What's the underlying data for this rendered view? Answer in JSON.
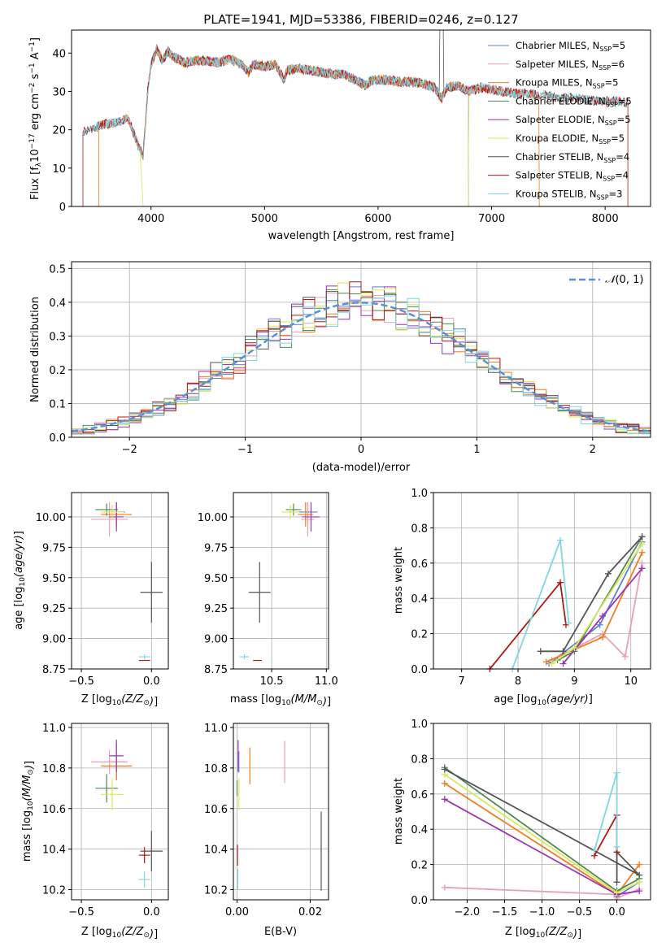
{
  "chart_data": [
    {
      "type": "line",
      "title": "PLATE=1941, MJD=53386, FIBERID=0246, z=0.127",
      "xlabel": "wavelength [Angstrom, rest frame]",
      "ylabel": "Flux [f_λ 10^-17 erg cm^-2 s^-1 A^-1]",
      "xlim": [
        3300,
        8400
      ],
      "ylim": [
        0,
        46
      ],
      "xticks": [
        4000,
        5000,
        6000,
        7000,
        8000
      ],
      "yticks": [
        0,
        10,
        20,
        30,
        40
      ],
      "legend_position": "upper-right",
      "shape_points": [
        [
          3400,
          19.5
        ],
        [
          3500,
          20.5
        ],
        [
          3600,
          21.5
        ],
        [
          3700,
          22
        ],
        [
          3800,
          23
        ],
        [
          3860,
          18
        ],
        [
          3930,
          13
        ],
        [
          3970,
          30
        ],
        [
          4000,
          37
        ],
        [
          4050,
          41
        ],
        [
          4100,
          38
        ],
        [
          4150,
          40.5
        ],
        [
          4200,
          39
        ],
        [
          4300,
          37.5
        ],
        [
          4400,
          38
        ],
        [
          4500,
          38
        ],
        [
          4600,
          37.5
        ],
        [
          4700,
          38.5
        ],
        [
          4800,
          37
        ],
        [
          4860,
          35
        ],
        [
          4900,
          37
        ],
        [
          5000,
          36.5
        ],
        [
          5100,
          37
        ],
        [
          5170,
          33
        ],
        [
          5200,
          35.5
        ],
        [
          5300,
          36
        ],
        [
          5400,
          35.5
        ],
        [
          5500,
          35
        ],
        [
          5600,
          34.5
        ],
        [
          5700,
          34.5
        ],
        [
          5800,
          33
        ],
        [
          5890,
          31.5
        ],
        [
          5950,
          33
        ],
        [
          6000,
          33
        ],
        [
          6100,
          33
        ],
        [
          6200,
          32.5
        ],
        [
          6300,
          32.5
        ],
        [
          6400,
          32
        ],
        [
          6500,
          31
        ],
        [
          6560,
          28
        ],
        [
          6600,
          31
        ],
        [
          6700,
          31.5
        ],
        [
          6800,
          30
        ],
        [
          6900,
          31
        ],
        [
          7000,
          30.5
        ],
        [
          7100,
          30
        ],
        [
          7200,
          29.5
        ],
        [
          7300,
          29.5
        ],
        [
          7400,
          29
        ],
        [
          7500,
          29
        ],
        [
          7600,
          28
        ],
        [
          7700,
          28.5
        ],
        [
          7800,
          28
        ],
        [
          7900,
          27.5
        ],
        [
          8000,
          27.5
        ],
        [
          8100,
          27.5
        ],
        [
          8200,
          27
        ]
      ],
      "series": [
        {
          "name": "Chabrier MILES, N_SSP=5",
          "color": "#5d7fd6",
          "coverage": [
            3540,
            7420
          ]
        },
        {
          "name": "Salpeter MILES, N_SSP=6",
          "color": "#e8a0b8",
          "coverage": [
            3540,
            7420
          ]
        },
        {
          "name": "Kroupa MILES, N_SSP=5",
          "color": "#f07d1e",
          "coverage": [
            3540,
            7420
          ]
        },
        {
          "name": "Chabrier ELODIE, N_SSP=5",
          "color": "#4f8a50",
          "coverage": [
            3900,
            6800
          ]
        },
        {
          "name": "Salpeter ELODIE, N_SSP=5",
          "color": "#9b34b5",
          "coverage": [
            3900,
            6800
          ]
        },
        {
          "name": "Kroupa ELODIE, N_SSP=5",
          "color": "#d8e85a",
          "coverage": [
            3900,
            6800
          ]
        },
        {
          "name": "Chabrier STELIB, N_SSP=4",
          "color": "#555555",
          "coverage": [
            3400,
            8200
          ]
        },
        {
          "name": "Salpeter STELIB, N_SSP=4",
          "color": "#b01818",
          "coverage": [
            3400,
            8200
          ]
        },
        {
          "name": "Kroupa STELIB, N_SSP=3",
          "color": "#7fd7e0",
          "coverage": [
            3400,
            8200
          ]
        }
      ],
      "legend_labels": [
        {
          "base": "Chabrier MILES, N",
          "sub": "SSP",
          "tail": "=5"
        },
        {
          "base": "Salpeter MILES, N",
          "sub": "SSP",
          "tail": "=6"
        },
        {
          "base": "Kroupa MILES, N",
          "sub": "SSP",
          "tail": "=5"
        },
        {
          "base": "Chabrier ELODIE, N",
          "sub": "SSP",
          "tail": "=5"
        },
        {
          "base": "Salpeter ELODIE, N",
          "sub": "SSP",
          "tail": "=5"
        },
        {
          "base": "Kroupa ELODIE, N",
          "sub": "SSP",
          "tail": "=5"
        },
        {
          "base": "Chabrier STELIB, N",
          "sub": "SSP",
          "tail": "=4"
        },
        {
          "base": "Salpeter STELIB, N",
          "sub": "SSP",
          "tail": "=4"
        },
        {
          "base": "Kroupa STELIB, N",
          "sub": "SSP",
          "tail": "=3"
        }
      ]
    },
    {
      "type": "line",
      "xlabel": "(data-model)/error",
      "ylabel": "Normed distribution",
      "xlim": [
        -2.5,
        2.5
      ],
      "ylim": [
        0,
        0.52
      ],
      "xticks": [
        -2,
        -1,
        0,
        1,
        2
      ],
      "yticks": [
        0.0,
        0.1,
        0.2,
        0.3,
        0.4,
        0.5
      ],
      "grid": true,
      "legend_position": "upper-right",
      "reference_curve": {
        "name": "N(0,1)",
        "color": "#5b8fd6",
        "style": "dashed"
      },
      "bins": [
        -2.5,
        2.5,
        50
      ]
    },
    {
      "type": "scatter",
      "xlabel": "Z [log10(Z/Z⊙)]",
      "ylabel": "age [log10(age/yr)]",
      "xlim": [
        -0.57,
        0.12
      ],
      "ylim": [
        8.75,
        10.2
      ],
      "xticks": [
        -0.5,
        0.0
      ],
      "yticks": [
        8.75,
        9.0,
        9.25,
        9.5,
        9.75,
        10.0
      ],
      "grid": true
    },
    {
      "type": "scatter",
      "xlabel": "mass [log10(M/M⊙)]",
      "ylabel": "",
      "xlim": [
        10.15,
        11.02
      ],
      "ylim": [
        8.75,
        10.2
      ],
      "xticks": [
        10.5,
        11.0
      ],
      "yticks": [
        8.75,
        9.0,
        9.25,
        9.5,
        9.75,
        10.0
      ],
      "grid": true
    },
    {
      "type": "line",
      "xlabel": "age [log10(age/yr)]",
      "ylabel": "mass weight",
      "xlim": [
        6.5,
        10.35
      ],
      "ylim": [
        0,
        1
      ],
      "xticks": [
        7,
        8,
        9,
        10
      ],
      "yticks": [
        0.0,
        0.2,
        0.4,
        0.6,
        0.8,
        1.0
      ],
      "grid": true
    },
    {
      "type": "scatter",
      "xlabel": "Z [log10(Z/Z⊙)]",
      "ylabel": "mass [log10(M/M⊙)]",
      "xlim": [
        -0.57,
        0.12
      ],
      "ylim": [
        10.15,
        11.02
      ],
      "xticks": [
        -0.5,
        0.0
      ],
      "yticks": [
        10.2,
        10.4,
        10.6,
        10.8,
        11.0
      ],
      "grid": true
    },
    {
      "type": "scatter",
      "xlabel": "E(B-V)",
      "ylabel": "",
      "xlim": [
        -0.001,
        0.025
      ],
      "ylim": [
        10.15,
        11.02
      ],
      "xticks": [
        0.0,
        0.02
      ],
      "yticks": [
        10.2,
        10.4,
        10.6,
        10.8,
        11.0
      ],
      "grid": true
    },
    {
      "type": "line",
      "xlabel": "Z [log10(Z/Z⊙)]",
      "ylabel": "mass weight",
      "xlim": [
        -2.45,
        0.45
      ],
      "ylim": [
        0,
        1
      ],
      "xticks": [
        -2.0,
        -1.5,
        -1.0,
        -0.5,
        0.0
      ],
      "yticks": [
        0.0,
        0.2,
        0.4,
        0.6,
        0.8,
        1.0
      ],
      "grid": true
    }
  ],
  "ssp_fits": [
    {
      "color": "#5d7fd6",
      "Z": [
        -0.25,
        0.06
      ],
      "age": [
        10.04,
        0.08
      ],
      "mass": [
        10.83,
        0.09
      ],
      "ebv": [
        0.0005,
        0.04
      ],
      "ages": [
        8.55,
        9.45,
        10.2
      ],
      "Zs": [
        0.0,
        0.0,
        0.3
      ],
      "weights": [
        0.03,
        0.25,
        0.72
      ],
      "Zw": [
        [
          0,
          0.05
        ],
        [
          0,
          0.02
        ],
        [
          0.3,
          0.1
        ]
      ]
    },
    {
      "color": "#e8a0b8",
      "Z": [
        -0.3,
        0.13
      ],
      "age": [
        9.98,
        0.14
      ],
      "mass": [
        10.83,
        0.06
      ],
      "ebv": [
        0.013,
        0.08
      ],
      "ages": [
        8.6,
        9.5,
        9.9,
        10.2
      ],
      "Zs": [
        -2.3,
        0.0,
        0.0,
        0.3
      ],
      "weights": [
        0.05,
        0.2,
        0.07,
        0.6
      ],
      "Zw": [
        [
          -2.3,
          0.07
        ],
        [
          0,
          0.03
        ],
        [
          0,
          0.01
        ],
        [
          0.3,
          0.06
        ]
      ]
    },
    {
      "color": "#f07d1e",
      "Z": [
        -0.25,
        0.11
      ],
      "age": [
        10.02,
        0.1
      ],
      "mass": [
        10.81,
        0.07
      ],
      "ebv": [
        0.0035,
        0.07
      ],
      "ages": [
        8.5,
        9.5,
        10.2
      ],
      "Zs": [
        -2.3,
        0.0,
        0.3
      ],
      "weights": [
        0.04,
        0.18,
        0.66
      ],
      "Zw": [
        [
          -2.3,
          0.66
        ],
        [
          0,
          0.03
        ],
        [
          0.3,
          0.2
        ]
      ]
    },
    {
      "color": "#4f8a50",
      "Z": [
        -0.32,
        0.08
      ],
      "age": [
        10.06,
        0.05
      ],
      "mass": [
        10.7,
        0.07
      ],
      "ebv": [
        0.0,
        0.03
      ],
      "ages": [
        8.7,
        9.0,
        10.2
      ],
      "Zs": [
        -2.3,
        0.0,
        0.3
      ],
      "weights": [
        0.05,
        0.1,
        0.75
      ],
      "Zw": [
        [
          -2.3,
          0.75
        ],
        [
          0,
          0.05
        ],
        [
          0.3,
          0.12
        ]
      ]
    },
    {
      "color": "#9b34b5",
      "Z": [
        -0.25,
        0.05
      ],
      "age": [
        10.0,
        0.12
      ],
      "mass": [
        10.86,
        0.08
      ],
      "ebv": [
        0.0003,
        0.06
      ],
      "ages": [
        8.8,
        9.5,
        10.2
      ],
      "Zs": [
        -2.3,
        0.0,
        0.3
      ],
      "weights": [
        0.03,
        0.3,
        0.57
      ],
      "Zw": [
        [
          -2.3,
          0.57
        ],
        [
          0,
          0.03
        ],
        [
          0.3,
          0.05
        ]
      ]
    },
    {
      "color": "#d8e85a",
      "Z": [
        -0.28,
        0.08
      ],
      "age": [
        10.04,
        0.06
      ],
      "mass": [
        10.67,
        0.08
      ],
      "ebv": [
        0.0005,
        0.06
      ],
      "ages": [
        8.6,
        9.0,
        10.2
      ],
      "Zs": [
        -2.3,
        0.0,
        0.3
      ],
      "weights": [
        0.03,
        0.12,
        0.71
      ],
      "Zw": [
        [
          -2.3,
          0.71
        ],
        [
          0,
          0.04
        ],
        [
          0.3,
          0.1
        ]
      ]
    },
    {
      "color": "#555555",
      "Z": [
        0.0,
        0.08
      ],
      "age": [
        9.38,
        0.25
      ],
      "mass": [
        10.39,
        0.1
      ],
      "ebv": [
        0.023,
        0.15
      ],
      "ages": [
        8.4,
        8.8,
        9.6,
        10.2
      ],
      "Zs": [
        0.0,
        0.0,
        0.3,
        -2.3
      ],
      "weights": [
        0.1,
        0.1,
        0.54,
        0.75
      ],
      "Zw": [
        [
          0,
          0.1
        ],
        [
          0,
          0.27
        ],
        [
          0.3,
          0.14
        ],
        [
          -2.3,
          0.74
        ]
      ]
    },
    {
      "color": "#b01818",
      "Z": [
        -0.05,
        0.04
      ],
      "age": [
        8.82,
        0.0
      ],
      "mass": [
        10.37,
        0.04
      ],
      "ebv": [
        0.0001,
        0.04
      ],
      "ages": [
        7.5,
        8.75,
        8.85
      ],
      "Zs": [
        -0.3,
        0.0,
        0.0
      ],
      "weights": [
        0.0,
        0.49,
        0.25
      ],
      "Zw": [
        [
          -0.3,
          0.25
        ],
        [
          0,
          0.48
        ],
        [
          0,
          0.27
        ]
      ]
    },
    {
      "color": "#7fd7e0",
      "Z": [
        -0.05,
        0.04
      ],
      "age": [
        8.85,
        0.02
      ],
      "mass": [
        10.25,
        0.04
      ],
      "ebv": [
        0.0002,
        0.04
      ],
      "ages": [
        7.9,
        8.75,
        8.9
      ],
      "Zs": [
        -0.3,
        0.0,
        0.0
      ],
      "weights": [
        0.0,
        0.73,
        0.26
      ],
      "Zw": [
        [
          -0.3,
          0.28
        ],
        [
          0,
          0.72
        ],
        [
          0,
          0.3
        ]
      ]
    }
  ]
}
